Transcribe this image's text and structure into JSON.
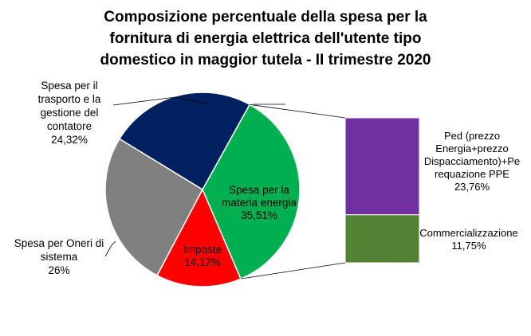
{
  "chart_data": {
    "type": "pie",
    "title": [
      "Composizione percentuale della spesa per la",
      "fornitura di energia elettrica dell'utente tipo",
      "domestico in maggior tutela - II trimestre 2020"
    ],
    "slices": [
      {
        "label": [
          "Spesa per la",
          "materia energia"
        ],
        "value_text": "35,51%",
        "value": 35.51,
        "color": "#00b050"
      },
      {
        "label": [
          "Imposte"
        ],
        "value_text": "14,17%",
        "value": 14.17,
        "color": "#ff0000"
      },
      {
        "label": [
          "Spesa per Oneri di",
          "sistema"
        ],
        "value_text": "26%",
        "value": 26.0,
        "color": "#808080"
      },
      {
        "label": [
          "Spesa per il",
          "trasporto e la",
          "gestione del",
          "contatore"
        ],
        "value_text": "24,32%",
        "value": 24.32,
        "color": "#002060"
      }
    ],
    "breakdown_of": "Spesa per la materia energia",
    "breakdown": [
      {
        "label": [
          "Ped (prezzo",
          "Energia+prezzo",
          "Dispacciamento)+Pe",
          "requazione PPE"
        ],
        "value_text": "23,76%",
        "value": 23.76,
        "color": "#7030a0"
      },
      {
        "label": [
          "Commercializzazione"
        ],
        "value_text": "11,75%",
        "value": 11.75,
        "color": "#548235"
      }
    ]
  }
}
